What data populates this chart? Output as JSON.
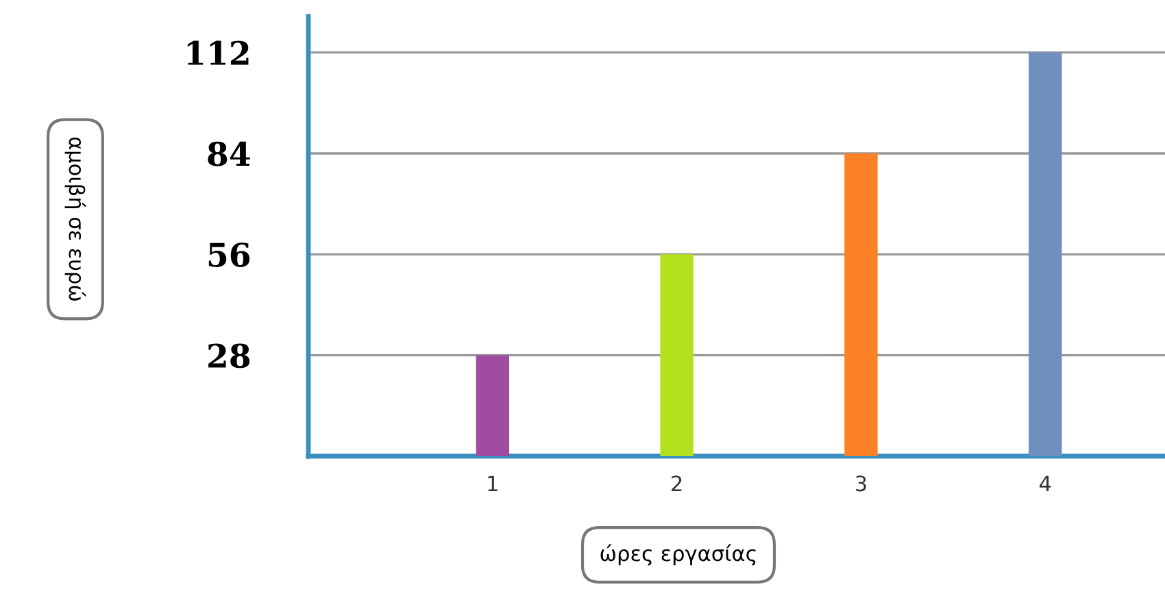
{
  "chart_data": {
    "type": "bar",
    "categories": [
      "1",
      "2",
      "3",
      "4"
    ],
    "values": [
      28,
      56,
      84,
      112
    ],
    "colors": [
      "#a04ca0",
      "#b5e01e",
      "#fb8026",
      "#6f8fbf"
    ],
    "xlabel": "ώρες εργασίας",
    "ylabel": "αμοιβή σε ευρώ",
    "ylim": [
      0,
      122
    ],
    "yticks": [
      28,
      56,
      84,
      112
    ],
    "grid": "y",
    "legend": false
  }
}
